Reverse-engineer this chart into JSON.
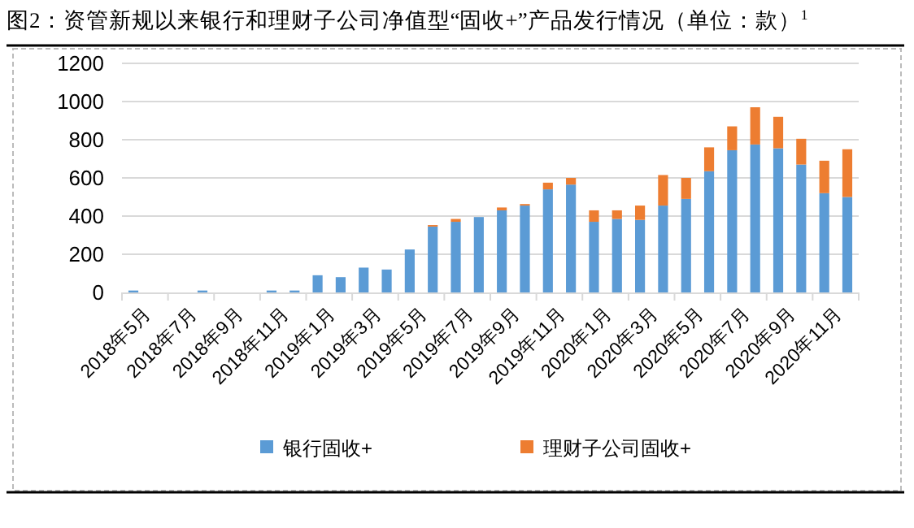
{
  "chart_data": {
    "type": "bar",
    "title": "图2：资管新规以来银行和理财子公司净值型“固收+”产品发行情况（单位：款）$^{1}$",
    "categories": [
      "2018年5月",
      null,
      "2018年7月",
      null,
      "2018年9月",
      null,
      "2018年11月",
      null,
      "2019年1月",
      null,
      "2019年3月",
      null,
      "2019年5月",
      null,
      "2019年7月",
      null,
      "2019年9月",
      null,
      "2019年11月",
      null,
      "2020年1月",
      null,
      "2020年3月",
      null,
      "2020年5月",
      null,
      "2020年7月",
      null,
      "2020年9月",
      null,
      "2020年11月",
      null
    ],
    "series": [
      {
        "name": "银行固收+",
        "color": "#5b9bd5",
        "values": [
          10,
          0,
          0,
          10,
          0,
          0,
          10,
          10,
          90,
          80,
          130,
          120,
          225,
          345,
          370,
          395,
          430,
          455,
          540,
          565,
          370,
          385,
          380,
          455,
          490,
          635,
          745,
          775,
          755,
          670,
          520,
          500
        ]
      },
      {
        "name": "理财子公司固收+",
        "color": "#ed7d31",
        "values": [
          0,
          0,
          0,
          0,
          0,
          0,
          0,
          0,
          0,
          0,
          0,
          0,
          0,
          8,
          15,
          0,
          15,
          8,
          35,
          35,
          60,
          45,
          75,
          160,
          110,
          125,
          125,
          195,
          165,
          135,
          170,
          250
        ]
      }
    ],
    "stacked": true,
    "ylim": [
      0,
      1200
    ],
    "yticks": [
      0,
      200,
      400,
      600,
      800,
      1000,
      1200
    ],
    "grid": "y",
    "legend": "bottom"
  }
}
